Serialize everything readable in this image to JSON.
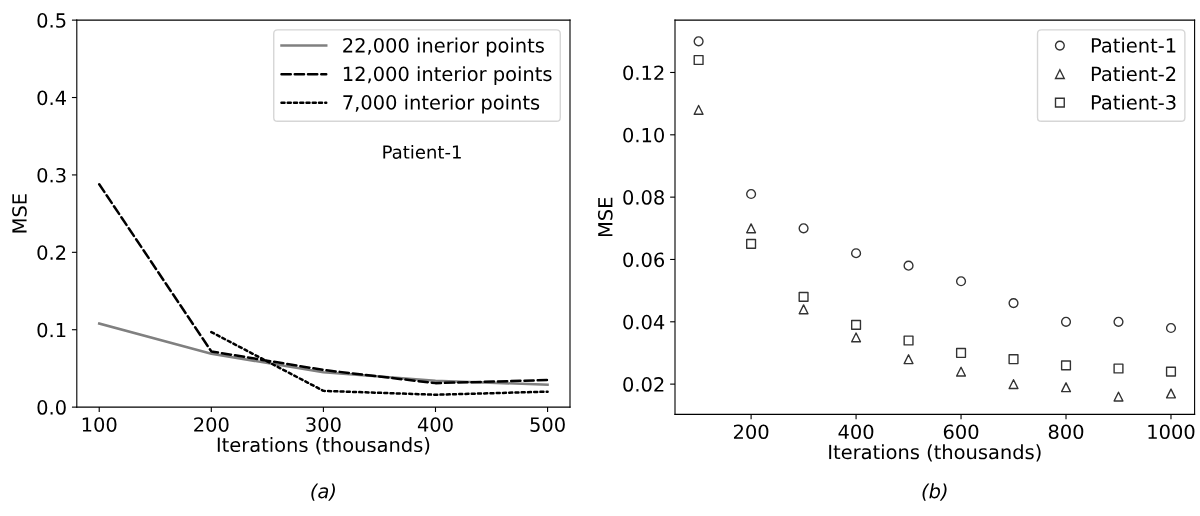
{
  "chart_data": [
    {
      "type": "line",
      "xlabel": "Iterations (thousands)",
      "ylabel": "MSE",
      "x": [
        100,
        200,
        300,
        400,
        500
      ],
      "series": [
        {
          "name": "22,000 inerior points",
          "color": "#808080",
          "line_style": "solid",
          "values": [
            0.108,
            0.069,
            0.045,
            0.034,
            0.029
          ]
        },
        {
          "name": "12,000 interior points",
          "color": "#000000",
          "line_style": "dashed",
          "values": [
            0.288,
            0.072,
            0.048,
            0.031,
            0.035
          ]
        },
        {
          "name": "7,000 interior points",
          "color": "#000000",
          "line_style": "dotted",
          "values": [
            null,
            0.097,
            0.021,
            0.016,
            0.02
          ]
        }
      ],
      "xlim": [
        80,
        520
      ],
      "xticks": [
        100,
        200,
        300,
        400,
        500
      ],
      "ylim": [
        0.0,
        0.5
      ],
      "yticks": [
        {
          "value": 0,
          "label": "0.0"
        },
        0.1,
        0.2,
        0.3,
        0.4,
        0.5
      ],
      "legend": "top right",
      "grid": false,
      "marker": "none",
      "annotations": [
        "Patient-1",
        "(a)"
      ]
    },
    {
      "type": "scatter",
      "xlabel": "Iterations (thousands)",
      "ylabel": "MSE",
      "x": [
        100,
        200,
        300,
        400,
        500,
        600,
        700,
        800,
        900,
        1000
      ],
      "series": [
        {
          "name": "Patient-1",
          "color": "#333333",
          "marker": "circle",
          "values": [
            0.13,
            0.081,
            0.07,
            0.062,
            0.058,
            0.053,
            0.046,
            0.04,
            0.04,
            0.038
          ]
        },
        {
          "name": "Patient-2",
          "color": "#333333",
          "marker": "triangle",
          "values": [
            0.108,
            0.07,
            0.044,
            0.035,
            0.028,
            0.024,
            0.02,
            0.019,
            0.016,
            0.017
          ]
        },
        {
          "name": "Patient-3",
          "color": "#333333",
          "marker": "square",
          "values": [
            0.124,
            0.065,
            0.048,
            0.039,
            0.034,
            0.03,
            0.028,
            0.026,
            0.025,
            0.024
          ]
        }
      ],
      "xlim": [
        55,
        1045
      ],
      "xticks": [
        200,
        400,
        600,
        800,
        1000
      ],
      "ylim": [
        0.0103,
        0.1368
      ],
      "yticks": [
        0.02,
        0.04,
        0.06,
        0.08,
        {
          "value": 0.1,
          "label": "0.10"
        },
        0.12
      ],
      "legend": "top right",
      "grid": false,
      "annotations": [
        "(b)"
      ]
    }
  ]
}
